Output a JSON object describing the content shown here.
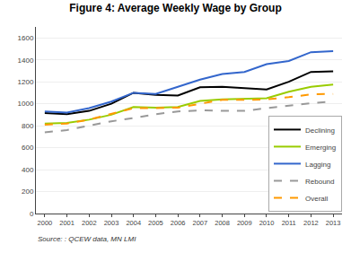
{
  "chart_data": {
    "type": "line",
    "title": "Figure 4: Average Weekly Wage by Group",
    "annotations": [
      "Source: : QCEW data, MN LMI"
    ],
    "x": [
      2000,
      2001,
      2002,
      2003,
      2004,
      2005,
      2006,
      2007,
      2008,
      2009,
      2010,
      2011,
      2012,
      2013
    ],
    "series": [
      {
        "name": "Declining",
        "color": "#000000",
        "line_style": "solid",
        "values": [
          915,
          905,
          935,
          1000,
          1100,
          1080,
          1075,
          1150,
          1155,
          1140,
          1130,
          1200,
          1290,
          1295
        ]
      },
      {
        "name": "Emerging",
        "color": "#99cc00",
        "line_style": "solid",
        "values": [
          820,
          825,
          855,
          900,
          970,
          965,
          970,
          1025,
          1040,
          1045,
          1050,
          1110,
          1155,
          1175
        ]
      },
      {
        "name": "Lagging",
        "color": "#3366cc",
        "line_style": "solid",
        "values": [
          930,
          920,
          960,
          1020,
          1100,
          1090,
          1155,
          1220,
          1270,
          1290,
          1360,
          1390,
          1470,
          1480
        ]
      },
      {
        "name": "Rebound",
        "color": "#999999",
        "line_style": "dashed",
        "values": [
          740,
          760,
          800,
          840,
          870,
          905,
          930,
          940,
          935,
          935,
          960,
          985,
          1005,
          1020
        ]
      },
      {
        "name": "Overall",
        "color": "#ff9900",
        "line_style": "dashed",
        "values": [
          810,
          820,
          855,
          905,
          960,
          960,
          965,
          1000,
          1035,
          1035,
          1040,
          1060,
          1085,
          1090
        ]
      }
    ],
    "xlim": [
      1999.6,
      2013.4
    ],
    "xticks": [
      2000,
      2001,
      2002,
      2003,
      2004,
      2005,
      2006,
      2007,
      2008,
      2009,
      2010,
      2011,
      2012,
      2013
    ],
    "ylim": [
      0,
      1700
    ],
    "yticks": [
      0,
      200,
      400,
      600,
      800,
      1000,
      1200,
      1400,
      1600
    ],
    "grid": true,
    "legend": "lower right"
  }
}
